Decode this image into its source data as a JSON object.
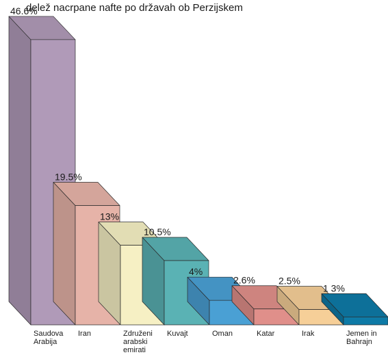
{
  "chart_data": {
    "type": "bar",
    "title": "delež nacrpane nafte po državah ob Perzijskem",
    "categories": [
      "Saudova Arabija",
      "Iran",
      "Združeni arabski emirati",
      "Kuvajt",
      "Oman",
      "Katar",
      "Irak",
      "Jemen in Bahrajn"
    ],
    "category_lines": [
      [
        "Saudova",
        "Arabija"
      ],
      [
        "Iran"
      ],
      [
        "Združeni",
        "arabski",
        "emirati"
      ],
      [
        "Kuvajt"
      ],
      [
        "Oman"
      ],
      [
        "Katar"
      ],
      [
        "Irak"
      ],
      [
        "Jemen in",
        "Bahrajn"
      ]
    ],
    "values": [
      46.6,
      19.5,
      13,
      10.5,
      4,
      2.6,
      2.5,
      1.3
    ],
    "value_labels": [
      "46.6%",
      "19.5%",
      "13%",
      "10.5%",
      "4%",
      "2.6%",
      "2.5%",
      "1 3%"
    ],
    "colors": [
      "#b09ab8",
      "#e6b3a8",
      "#f6f0c4",
      "#5ab2b4",
      "#4aa0d4",
      "#e08f8a",
      "#f6cf98",
      "#0e7aa6"
    ],
    "grid": false,
    "legend": "none"
  }
}
